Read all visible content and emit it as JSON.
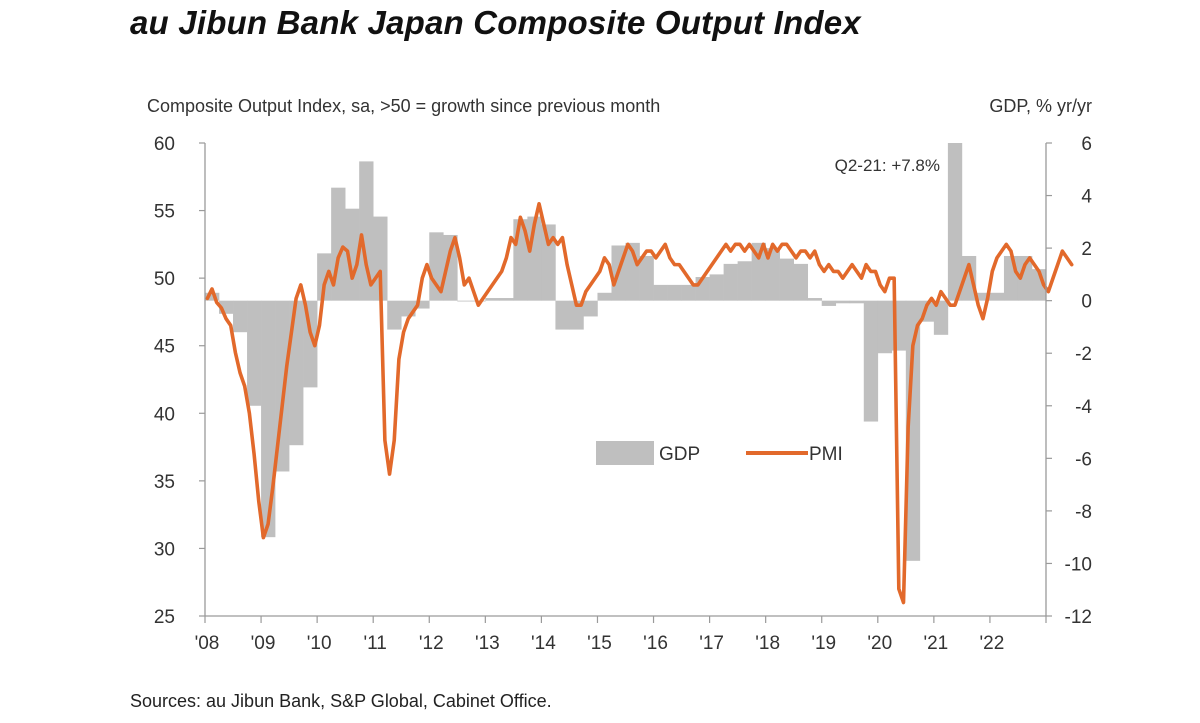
{
  "title": "au Jibun Bank Japan Composite Output Index",
  "source": "Sources: au Jibun Bank, S&P Global, Cabinet Office.",
  "colors": {
    "pmi": "#E2692B",
    "gdp": "#BFBFBF",
    "axis": "#9A9A9A"
  },
  "chart_data": {
    "type": "bar+line",
    "left_axis_title": "Composite Output Index, sa, >50 = growth since previous month",
    "right_axis_title": "GDP, % yr/yr",
    "left_ylim": [
      25,
      60
    ],
    "left_ticks": [
      "60",
      "55",
      "50",
      "45",
      "40",
      "35",
      "30",
      "25"
    ],
    "right_ylim": [
      -12,
      6
    ],
    "right_ticks": [
      "6",
      "4",
      "2",
      "0",
      "-2",
      "-4",
      "-6",
      "-8",
      "-10",
      "-12"
    ],
    "x_ticks": [
      "'08",
      "'09",
      "'10",
      "'11",
      "'12",
      "'13",
      "'14",
      "'15",
      "'16",
      "'17",
      "'18",
      "'19",
      "'20",
      "'21",
      "'22"
    ],
    "x_range": [
      2008.0,
      2023.0
    ],
    "legend": [
      "GDP",
      "PMI"
    ],
    "annotation": "Q2-21: +7.8%",
    "series": [
      {
        "name": "GDP",
        "kind": "bar",
        "axis": "right",
        "quarter_starts": [
          2008.0,
          2008.25,
          2008.5,
          2008.75,
          2009.0,
          2009.25,
          2009.5,
          2009.75,
          2010.0,
          2010.25,
          2010.5,
          2010.75,
          2011.0,
          2011.25,
          2011.5,
          2011.75,
          2012.0,
          2012.25,
          2012.5,
          2012.75,
          2013.0,
          2013.25,
          2013.5,
          2013.75,
          2014.0,
          2014.25,
          2014.5,
          2014.75,
          2015.0,
          2015.25,
          2015.5,
          2015.75,
          2016.0,
          2016.25,
          2016.5,
          2016.75,
          2017.0,
          2017.25,
          2017.5,
          2017.75,
          2018.0,
          2018.25,
          2018.5,
          2018.75,
          2019.0,
          2019.25,
          2019.5,
          2019.75,
          2020.0,
          2020.25,
          2020.5,
          2020.75,
          2021.0,
          2021.25,
          2021.5,
          2021.75,
          2022.0,
          2022.25,
          2022.5,
          2022.75
        ],
        "values": [
          0.3,
          -0.5,
          -1.2,
          -4.0,
          -9.0,
          -6.5,
          -5.5,
          -3.3,
          1.8,
          4.3,
          3.5,
          5.3,
          3.2,
          -1.1,
          -0.6,
          -0.3,
          2.6,
          2.5,
          0.0,
          0.0,
          0.1,
          0.1,
          3.1,
          3.2,
          2.9,
          -1.1,
          -1.1,
          -0.6,
          0.3,
          2.1,
          2.2,
          1.7,
          0.6,
          0.6,
          0.6,
          0.9,
          1.0,
          1.4,
          1.5,
          2.2,
          2.0,
          1.6,
          1.4,
          0.1,
          -0.2,
          -0.1,
          -0.1,
          -4.6,
          -2.0,
          -1.9,
          -9.9,
          -0.8,
          -1.3,
          7.8,
          1.7,
          0.3,
          0.3,
          1.7,
          1.7,
          1.2
        ]
      },
      {
        "name": "PMI",
        "kind": "line",
        "axis": "left",
        "x_start": 2008.0,
        "x_step_months": 1,
        "values": [
          48.5,
          49.2,
          48.2,
          47.8,
          47.0,
          46.5,
          44.5,
          43.0,
          42.0,
          40.0,
          37.0,
          33.5,
          30.8,
          31.8,
          34.5,
          37.5,
          40.5,
          43.5,
          46.0,
          48.5,
          49.5,
          48.0,
          46.0,
          45.0,
          46.5,
          49.5,
          50.5,
          49.5,
          51.5,
          52.3,
          52.0,
          50.0,
          51.0,
          53.2,
          51.0,
          49.5,
          50.0,
          50.5,
          38.0,
          35.5,
          38.0,
          44.0,
          46.0,
          47.0,
          47.5,
          48.0,
          50.0,
          51.0,
          50.0,
          49.5,
          49.0,
          50.5,
          52.0,
          53.0,
          51.5,
          49.5,
          50.0,
          49.0,
          48.0,
          48.5,
          49.0,
          49.5,
          50.0,
          50.5,
          51.5,
          53.0,
          52.5,
          54.5,
          53.5,
          52.0,
          54.0,
          55.5,
          54.0,
          52.5,
          53.0,
          52.5,
          53.0,
          51.0,
          49.5,
          48.0,
          48.0,
          49.0,
          49.5,
          50.0,
          50.5,
          51.5,
          51.0,
          49.5,
          50.5,
          51.5,
          52.5,
          52.0,
          51.0,
          51.5,
          52.0,
          52.0,
          51.5,
          52.0,
          52.5,
          51.5,
          51.0,
          51.0,
          50.5,
          50.0,
          49.5,
          49.5,
          50.0,
          50.5,
          51.0,
          51.5,
          52.0,
          52.5,
          52.0,
          52.5,
          52.5,
          52.0,
          52.5,
          52.0,
          51.5,
          52.5,
          51.5,
          52.5,
          52.0,
          52.5,
          52.5,
          52.0,
          51.5,
          52.0,
          52.0,
          51.5,
          52.0,
          51.0,
          50.5,
          51.0,
          50.5,
          50.5,
          50.0,
          50.5,
          51.0,
          50.5,
          50.0,
          51.0,
          50.5,
          50.5,
          49.5,
          49.0,
          50.0,
          50.0,
          27.0,
          26.0,
          39.0,
          45.0,
          46.5,
          47.0,
          48.0,
          48.5,
          48.0,
          49.0,
          48.5,
          48.0,
          48.0,
          49.0,
          50.0,
          51.0,
          49.5,
          48.0,
          47.0,
          48.5,
          50.5,
          51.5,
          52.0,
          52.5,
          52.0,
          50.5,
          50.0,
          51.0,
          51.5,
          51.0,
          50.5,
          49.5,
          49.0,
          50.0,
          51.0,
          52.0,
          51.5,
          51.0
        ]
      }
    ]
  }
}
